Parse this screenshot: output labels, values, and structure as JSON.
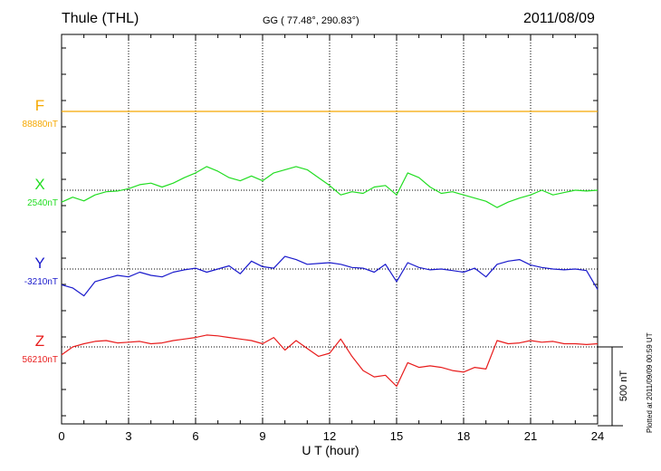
{
  "header": {
    "station": "Thule (THL)",
    "coords": "GG ( 77.48°, 290.83°)",
    "date": "2011/08/09"
  },
  "plotted_at": "Plotted at 2011/09/09 00:59 UT",
  "colors": {
    "F": "#f5a800",
    "X": "#22dd22",
    "Y": "#1a1acc",
    "Z": "#e81c1c"
  },
  "chart_data": {
    "type": "line",
    "xlabel": "U T (hour)",
    "xlim": [
      0,
      24
    ],
    "xticks": [
      0,
      3,
      6,
      9,
      12,
      15,
      18,
      21,
      24
    ],
    "scale_bar": {
      "label": "500 nT",
      "value_nT": 500
    },
    "grid": true,
    "series": [
      {
        "name": "F",
        "baseline_label": "88880nT",
        "baseline_nT": 88880,
        "x": [
          0,
          24
        ],
        "y": [
          88880,
          88880
        ]
      },
      {
        "name": "X",
        "baseline_label": "2540nT",
        "baseline_nT": 2540,
        "x": [
          0,
          0.5,
          1,
          1.5,
          2,
          2.5,
          3,
          3.5,
          4,
          4.5,
          5,
          5.5,
          6,
          6.5,
          7,
          7.5,
          8,
          8.5,
          9,
          9.5,
          10,
          10.5,
          11,
          11.5,
          12,
          12.5,
          13,
          13.5,
          14,
          14.5,
          15,
          15.5,
          16,
          16.5,
          17,
          17.5,
          18,
          18.5,
          19,
          19.5,
          20,
          20.5,
          21,
          21.5,
          22,
          22.5,
          23,
          23.5,
          24
        ],
        "y": [
          2464,
          2496,
          2472,
          2510,
          2530,
          2535,
          2550,
          2575,
          2585,
          2560,
          2585,
          2620,
          2650,
          2690,
          2660,
          2620,
          2600,
          2630,
          2600,
          2650,
          2670,
          2690,
          2670,
          2620,
          2570,
          2510,
          2530,
          2520,
          2560,
          2570,
          2510,
          2650,
          2620,
          2560,
          2520,
          2530,
          2510,
          2490,
          2470,
          2430,
          2465,
          2490,
          2510,
          2540,
          2510,
          2525,
          2540,
          2535,
          2540
        ]
      },
      {
        "name": "Y",
        "baseline_label": "-3210nT",
        "baseline_nT": -3210,
        "x": [
          0,
          0.5,
          1,
          1.5,
          2,
          2.5,
          3,
          3.5,
          4,
          4.5,
          5,
          5.5,
          6,
          6.5,
          7,
          7.5,
          8,
          8.5,
          9,
          9.5,
          10,
          10.5,
          11,
          11.5,
          12,
          12.5,
          13,
          13.5,
          14,
          14.5,
          15,
          15.5,
          16,
          16.5,
          17,
          17.5,
          18,
          18.5,
          19,
          19.5,
          20,
          20.5,
          21,
          21.5,
          22,
          22.5,
          23,
          23.5,
          24
        ],
        "y": [
          -3310,
          -3330,
          -3380,
          -3290,
          -3270,
          -3250,
          -3260,
          -3230,
          -3250,
          -3260,
          -3230,
          -3215,
          -3205,
          -3230,
          -3210,
          -3190,
          -3240,
          -3160,
          -3195,
          -3205,
          -3130,
          -3150,
          -3180,
          -3175,
          -3170,
          -3180,
          -3200,
          -3205,
          -3230,
          -3180,
          -3290,
          -3170,
          -3200,
          -3215,
          -3210,
          -3220,
          -3230,
          -3205,
          -3260,
          -3180,
          -3160,
          -3150,
          -3185,
          -3200,
          -3210,
          -3215,
          -3210,
          -3220,
          -3340
        ]
      },
      {
        "name": "Z",
        "baseline_label": "56210nT",
        "baseline_nT": 56210,
        "x": [
          0,
          0.5,
          1,
          1.5,
          2,
          2.5,
          3,
          3.5,
          4,
          4.5,
          5,
          5.5,
          6,
          6.5,
          7,
          7.5,
          8,
          8.5,
          9,
          9.5,
          10,
          10.5,
          11,
          11.5,
          12,
          12.5,
          13,
          13.5,
          14,
          14.5,
          15,
          15.5,
          16,
          16.5,
          17,
          17.5,
          18,
          18.5,
          19,
          19.5,
          20,
          20.5,
          21,
          21.5,
          22,
          22.5,
          23,
          23.5,
          24
        ],
        "y": [
          56160,
          56210,
          56230,
          56245,
          56250,
          56235,
          56240,
          56245,
          56230,
          56235,
          56250,
          56260,
          56270,
          56285,
          56280,
          56270,
          56260,
          56250,
          56230,
          56270,
          56190,
          56250,
          56200,
          56150,
          56170,
          56260,
          56150,
          56060,
          56020,
          56030,
          55960,
          56110,
          56080,
          56090,
          56080,
          56060,
          56050,
          56080,
          56070,
          56250,
          56230,
          56235,
          56250,
          56240,
          56245,
          56230,
          56230,
          56225,
          56230
        ]
      }
    ]
  }
}
